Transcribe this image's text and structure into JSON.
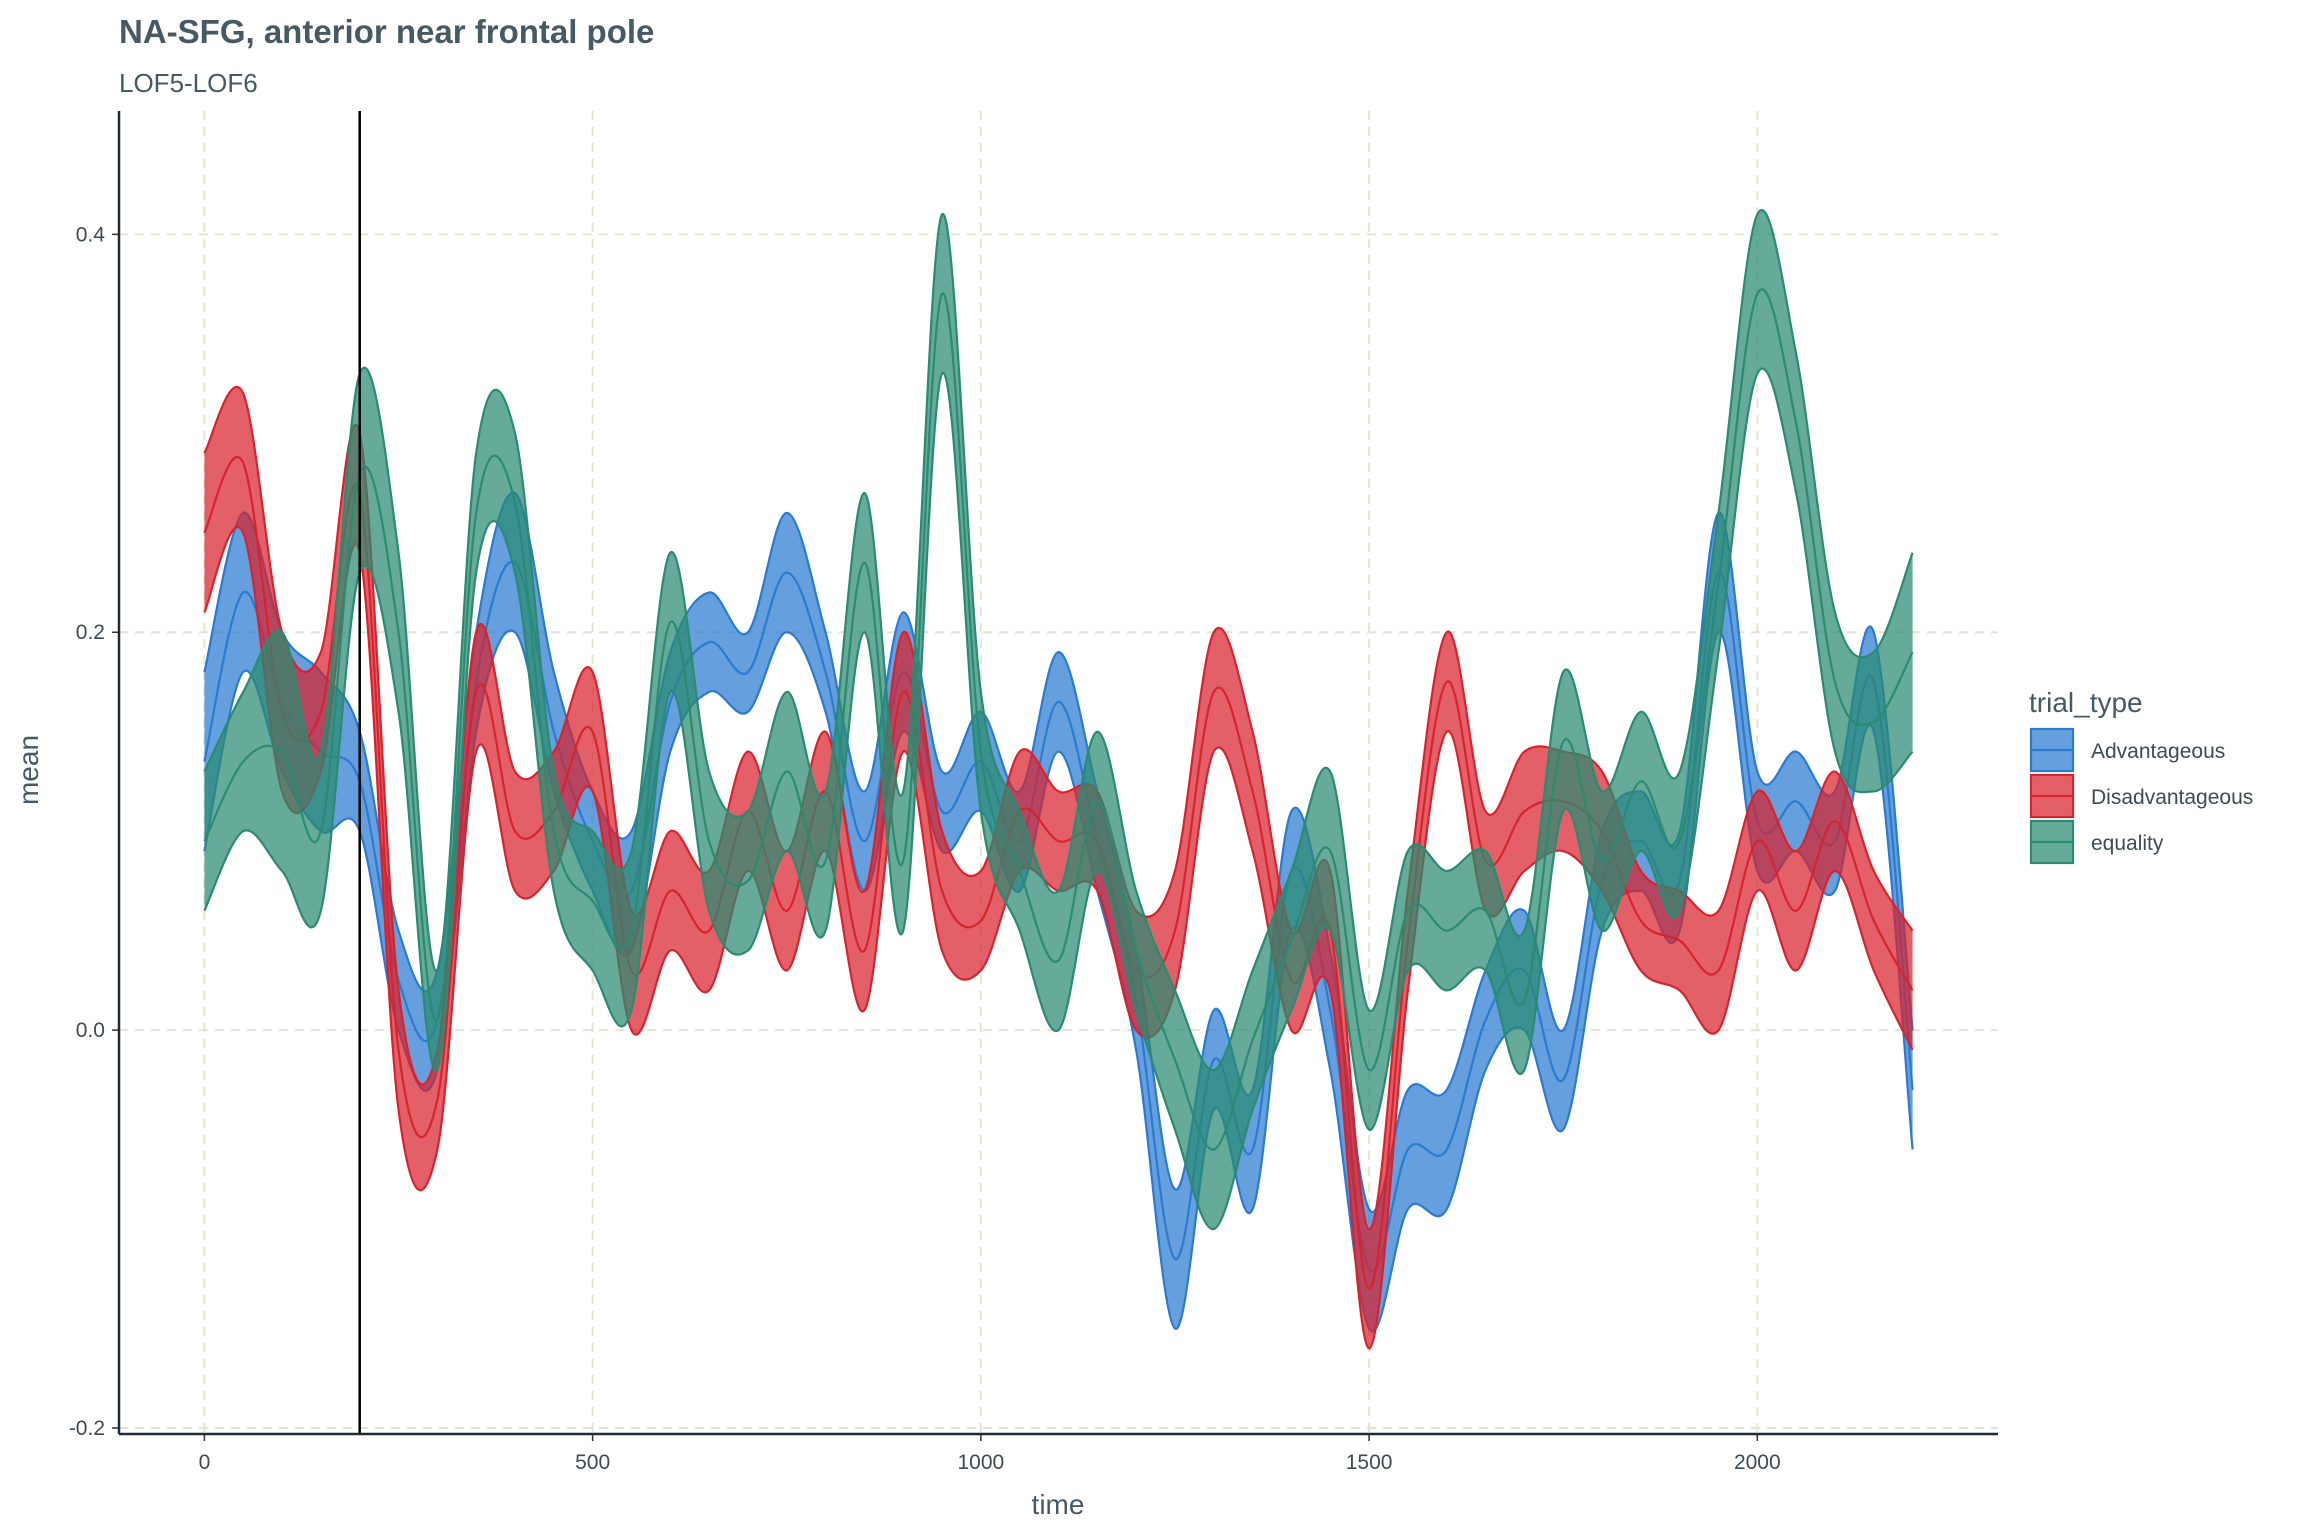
{
  "chart_data": {
    "type": "area",
    "title": "NA-SFG, anterior near frontal pole",
    "subtitle": "LOF5-LOF6",
    "xlabel": "time",
    "ylabel": "mean",
    "xlim": [
      -110,
      2310
    ],
    "ylim": [
      -0.203,
      0.462
    ],
    "x_ticks": [
      0,
      500,
      1000,
      1500,
      2000
    ],
    "y_ticks": [
      -0.2,
      0.0,
      0.2,
      0.4
    ],
    "y_tick_labels": [
      "-0.2",
      "0.0",
      "0.2",
      "0.4"
    ],
    "grid": true,
    "vline_x": 200,
    "legend": {
      "title": "trial_type",
      "position": "right"
    },
    "series": [
      {
        "name": "Advantageous",
        "color": "#2a7ad0",
        "x": [
          0,
          50,
          100,
          150,
          200,
          250,
          300,
          350,
          400,
          450,
          500,
          550,
          600,
          650,
          700,
          750,
          800,
          850,
          900,
          950,
          1000,
          1050,
          1100,
          1150,
          1200,
          1250,
          1300,
          1350,
          1400,
          1450,
          1500,
          1550,
          1600,
          1650,
          1700,
          1750,
          1800,
          1850,
          1900,
          1950,
          2000,
          2050,
          2100,
          2150,
          2200
        ],
        "upper": [
          0.18,
          0.26,
          0.2,
          0.18,
          0.15,
          0.05,
          0.03,
          0.2,
          0.27,
          0.18,
          0.12,
          0.1,
          0.19,
          0.22,
          0.2,
          0.26,
          0.2,
          0.12,
          0.21,
          0.13,
          0.16,
          0.12,
          0.19,
          0.12,
          0.04,
          -0.08,
          0.01,
          -0.03,
          0.11,
          0.04,
          -0.09,
          -0.03,
          -0.03,
          0.03,
          0.06,
          0.0,
          0.1,
          0.12,
          0.1,
          0.26,
          0.13,
          0.14,
          0.12,
          0.2,
          0.0
        ],
        "lower": [
          0.09,
          0.18,
          0.13,
          0.1,
          0.1,
          0.0,
          -0.02,
          0.15,
          0.2,
          0.12,
          0.07,
          0.04,
          0.14,
          0.17,
          0.16,
          0.2,
          0.16,
          0.07,
          0.15,
          0.09,
          0.11,
          0.07,
          0.14,
          0.07,
          -0.01,
          -0.15,
          -0.04,
          -0.09,
          0.05,
          -0.02,
          -0.15,
          -0.09,
          -0.09,
          -0.02,
          0.0,
          -0.05,
          0.05,
          0.07,
          0.05,
          0.2,
          0.08,
          0.09,
          0.07,
          0.15,
          -0.06
        ]
      },
      {
        "name": "Disadvantageous",
        "color": "#d8232e",
        "x": [
          0,
          50,
          100,
          150,
          200,
          250,
          300,
          350,
          400,
          450,
          500,
          550,
          600,
          650,
          700,
          750,
          800,
          850,
          900,
          950,
          1000,
          1050,
          1100,
          1150,
          1200,
          1250,
          1300,
          1350,
          1400,
          1450,
          1500,
          1550,
          1600,
          1650,
          1700,
          1750,
          1800,
          1850,
          1900,
          1950,
          2000,
          2050,
          2100,
          2150,
          2200
        ],
        "upper": [
          0.29,
          0.32,
          0.2,
          0.19,
          0.3,
          0.02,
          -0.01,
          0.2,
          0.13,
          0.14,
          0.18,
          0.06,
          0.1,
          0.08,
          0.14,
          0.09,
          0.15,
          0.07,
          0.2,
          0.1,
          0.08,
          0.14,
          0.12,
          0.12,
          0.06,
          0.08,
          0.2,
          0.15,
          0.05,
          0.08,
          -0.1,
          0.07,
          0.2,
          0.11,
          0.14,
          0.14,
          0.13,
          0.08,
          0.07,
          0.06,
          0.12,
          0.09,
          0.13,
          0.08,
          0.05
        ],
        "lower": [
          0.21,
          0.25,
          0.12,
          0.13,
          0.24,
          -0.04,
          -0.06,
          0.14,
          0.07,
          0.08,
          0.12,
          0.0,
          0.04,
          0.02,
          0.08,
          0.03,
          0.09,
          0.01,
          0.14,
          0.04,
          0.03,
          0.08,
          0.07,
          0.07,
          0.0,
          0.02,
          0.14,
          0.09,
          0.0,
          0.02,
          -0.16,
          0.02,
          0.15,
          0.06,
          0.08,
          0.09,
          0.07,
          0.03,
          0.02,
          0.0,
          0.07,
          0.03,
          0.08,
          0.03,
          -0.01
        ]
      },
      {
        "name": "equality",
        "color": "#2b8a72",
        "x": [
          0,
          50,
          100,
          150,
          200,
          250,
          300,
          350,
          400,
          450,
          500,
          550,
          600,
          650,
          700,
          750,
          800,
          850,
          900,
          950,
          1000,
          1050,
          1100,
          1150,
          1200,
          1250,
          1300,
          1350,
          1400,
          1450,
          1500,
          1550,
          1600,
          1650,
          1700,
          1750,
          1800,
          1850,
          1900,
          1950,
          2000,
          2050,
          2100,
          2150,
          2200
        ],
        "upper": [
          0.13,
          0.17,
          0.2,
          0.14,
          0.33,
          0.24,
          0.03,
          0.29,
          0.3,
          0.13,
          0.1,
          0.09,
          0.24,
          0.13,
          0.11,
          0.17,
          0.12,
          0.27,
          0.12,
          0.41,
          0.17,
          0.11,
          0.07,
          0.15,
          0.07,
          0.02,
          -0.02,
          0.03,
          0.08,
          0.13,
          0.01,
          0.09,
          0.08,
          0.09,
          0.05,
          0.18,
          0.12,
          0.16,
          0.13,
          0.26,
          0.41,
          0.34,
          0.21,
          0.19,
          0.24
        ],
        "lower": [
          0.06,
          0.1,
          0.08,
          0.06,
          0.23,
          0.16,
          -0.02,
          0.23,
          0.23,
          0.07,
          0.03,
          0.01,
          0.17,
          0.06,
          0.04,
          0.09,
          0.05,
          0.2,
          0.05,
          0.33,
          0.11,
          0.05,
          0.0,
          0.08,
          0.01,
          -0.05,
          -0.1,
          -0.04,
          0.01,
          0.05,
          -0.05,
          0.03,
          0.02,
          0.03,
          -0.02,
          0.11,
          0.05,
          0.09,
          0.06,
          0.19,
          0.33,
          0.27,
          0.14,
          0.12,
          0.14
        ]
      }
    ]
  }
}
